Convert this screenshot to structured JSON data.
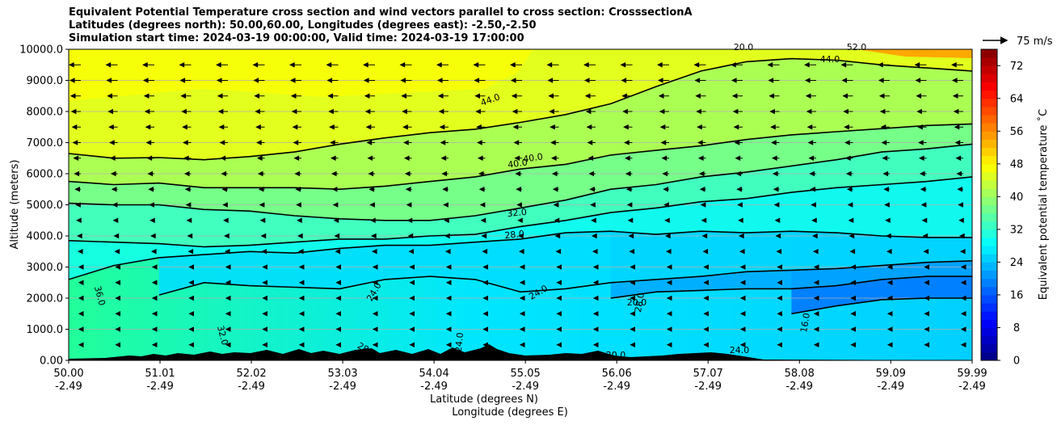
{
  "chart_data": {
    "type": "heatmap",
    "title_lines": [
      "Equivalent Potential Temperature cross section and wind vectors parallel to cross section: CrosssectionA",
      "Latitudes (degrees north): 50.00,60.00, Longitudes (degrees east): -2.50,-2.50",
      "Simulation start time: 2024-03-19 00:00:00, Valid time: 2024-03-19 17:00:00"
    ],
    "xlabel": "Latitude (degrees N)",
    "xlabel2": "Longitude (degrees E)",
    "ylabel": "Altitude (meters)",
    "xlim": [
      50.0,
      59.99
    ],
    "ylim": [
      0,
      10000
    ],
    "x_ticks": [
      {
        "value": 50.0,
        "lat": "50.00",
        "lon": "-2.49"
      },
      {
        "value": 51.01,
        "lat": "51.01",
        "lon": "-2.49"
      },
      {
        "value": 52.02,
        "lat": "52.02",
        "lon": "-2.49"
      },
      {
        "value": 53.03,
        "lat": "53.03",
        "lon": "-2.49"
      },
      {
        "value": 54.04,
        "lat": "54.04",
        "lon": "-2.49"
      },
      {
        "value": 55.05,
        "lat": "55.05",
        "lon": "-2.49"
      },
      {
        "value": 56.06,
        "lat": "56.06",
        "lon": "-2.49"
      },
      {
        "value": 57.07,
        "lat": "57.07",
        "lon": "-2.49"
      },
      {
        "value": 58.08,
        "lat": "58.08",
        "lon": "-2.49"
      },
      {
        "value": 59.09,
        "lat": "59.09",
        "lon": "-2.49"
      },
      {
        "value": 59.99,
        "lat": "59.99",
        "lon": "-2.49"
      }
    ],
    "y_ticks": [
      {
        "value": 0,
        "label": "0.00"
      },
      {
        "value": 1000,
        "label": "1000.0"
      },
      {
        "value": 2000,
        "label": "2000.0"
      },
      {
        "value": 3000,
        "label": "3000.0"
      },
      {
        "value": 4000,
        "label": "4000.0"
      },
      {
        "value": 5000,
        "label": "5000.0"
      },
      {
        "value": 6000,
        "label": "6000.0"
      },
      {
        "value": 7000,
        "label": "7000.0"
      },
      {
        "value": 8000,
        "label": "8000.0"
      },
      {
        "value": 9000,
        "label": "9000.0"
      },
      {
        "value": 10000,
        "label": "10000.0"
      }
    ],
    "grid": "horizontal",
    "colorbar": {
      "label": "Equivalent potential temperature ˚C",
      "range": [
        0,
        76
      ],
      "ticks": [
        0,
        8,
        16,
        24,
        32,
        40,
        48,
        56,
        64,
        72
      ],
      "colormap": "jet"
    },
    "quiver_key": {
      "label": "75 m/s",
      "value": 75
    },
    "contours": [
      {
        "value": 44.0,
        "y": [
          6650,
          6500,
          6520,
          6450,
          6550,
          6700,
          6950,
          7150,
          7320,
          7430,
          7650,
          7900,
          8250,
          8800,
          9300,
          9600,
          9700,
          9650,
          9500,
          9400,
          9300
        ]
      },
      {
        "value": 40.0,
        "y": [
          5750,
          5650,
          5700,
          5550,
          5550,
          5550,
          5500,
          5600,
          5750,
          5900,
          6150,
          6300,
          6600,
          6750,
          6900,
          7100,
          7250,
          7350,
          7450,
          7550,
          7600
        ]
      },
      {
        "value": 36.0,
        "y": [
          5050,
          5000,
          5000,
          4850,
          4800,
          4650,
          4550,
          4500,
          4500,
          4650,
          4900,
          5150,
          5500,
          5650,
          5900,
          6050,
          6250,
          6450,
          6700,
          6800,
          6950
        ]
      },
      {
        "value": 32.0,
        "y": [
          3850,
          3800,
          3750,
          3650,
          3700,
          3800,
          3900,
          3900,
          4000,
          4050,
          4300,
          4500,
          4750,
          4900,
          5100,
          5200,
          5400,
          5550,
          5650,
          5750,
          5900
        ]
      },
      {
        "value": 28.0,
        "y": [
          2600,
          3050,
          3300,
          3400,
          3500,
          3450,
          3600,
          3700,
          3700,
          3800,
          3900,
          4100,
          4150,
          4050,
          4150,
          4100,
          4150,
          4100,
          4000,
          3950,
          3950
        ]
      },
      {
        "value": 24.0,
        "y": [
          null,
          null,
          2100,
          2500,
          2400,
          2350,
          2300,
          2600,
          2700,
          2600,
          2200,
          2300,
          2500,
          2600,
          2700,
          2850,
          2900,
          2950,
          3050,
          3150,
          3200
        ]
      },
      {
        "value": 20.0,
        "y": [
          null,
          null,
          null,
          null,
          null,
          null,
          null,
          null,
          null,
          null,
          null,
          null,
          2000,
          2200,
          2250,
          2300,
          2300,
          2400,
          2600,
          2700,
          2700
        ]
      },
      {
        "value": 16.0,
        "y": [
          null,
          null,
          null,
          null,
          null,
          null,
          null,
          null,
          null,
          null,
          null,
          null,
          null,
          null,
          null,
          null,
          1500,
          1750,
          1950,
          2000,
          2000
        ]
      }
    ],
    "contour_labels": [
      "44.0",
      "40.0",
      "40.0",
      "32.0",
      "28.0",
      "36.0",
      "32.0",
      "24.0",
      "24.0",
      "20.0",
      "28.0",
      "16.0",
      "28.0",
      "24.0",
      "24.0",
      "20.0",
      "20.0",
      "44.0",
      "52.0"
    ]
  }
}
